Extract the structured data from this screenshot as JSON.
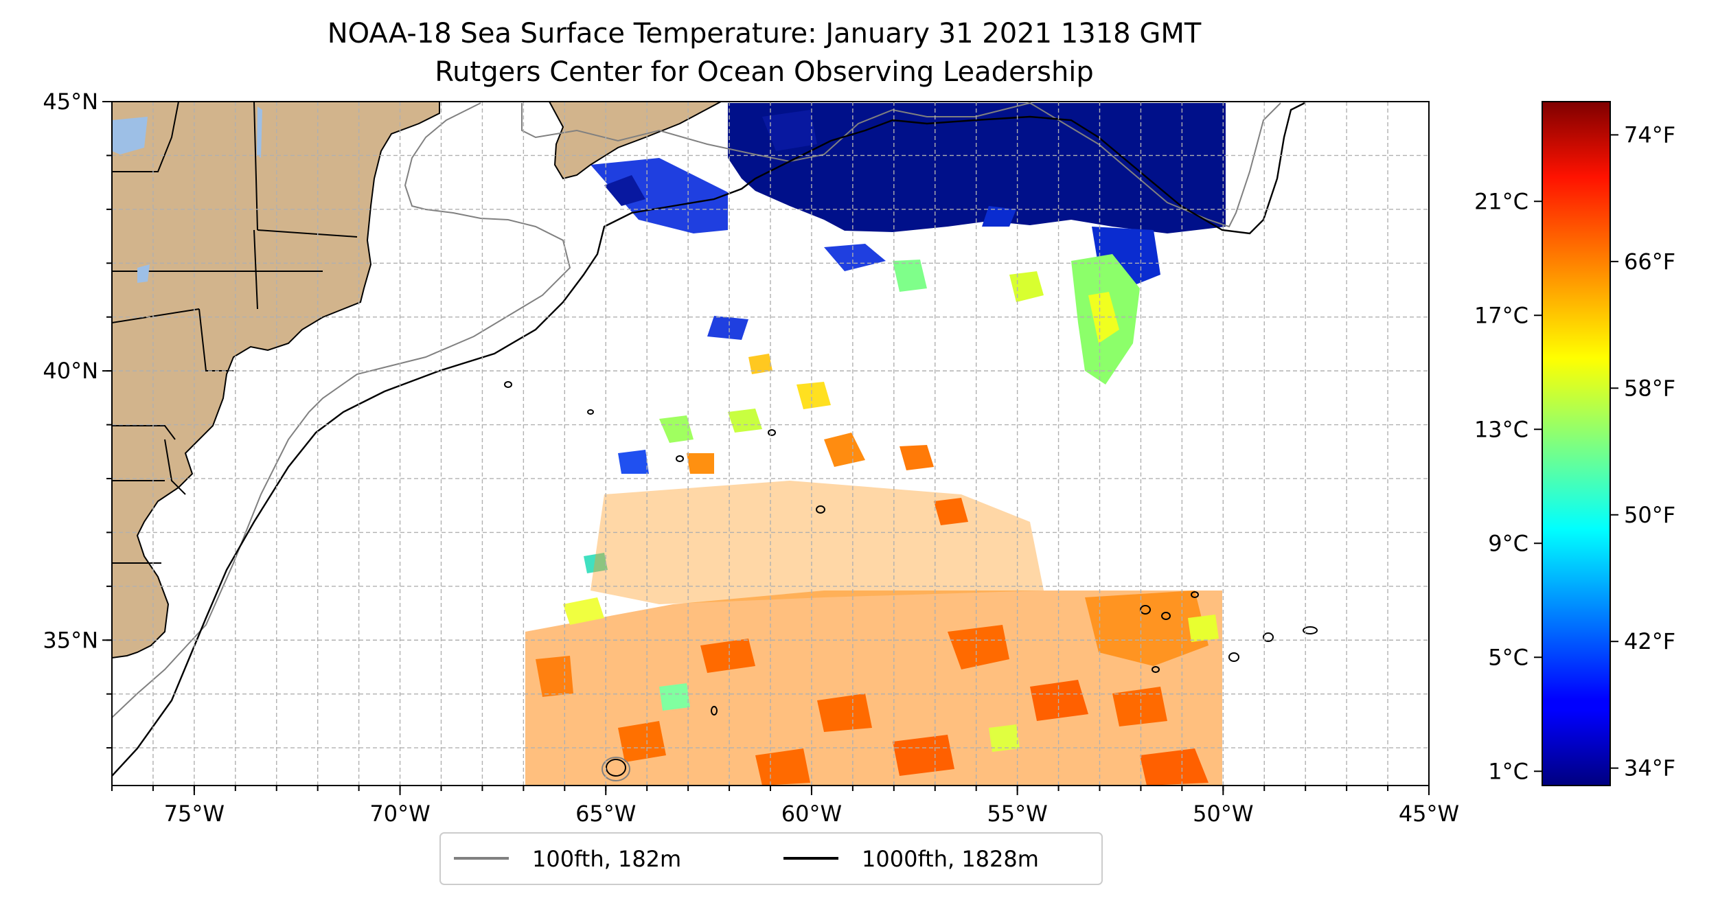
{
  "title": {
    "line1": "NOAA-18 Sea Surface Temperature: January 31 2021 1318 GMT",
    "line2": "Rutgers Center for Ocean Observing Leadership"
  },
  "map": {
    "lon_range": [
      -77,
      -45
    ],
    "lat_range": [
      32.3,
      45
    ],
    "lon_ticks": [
      {
        "lon": -75,
        "label": "75°W"
      },
      {
        "lon": -70,
        "label": "70°W"
      },
      {
        "lon": -65,
        "label": "65°W"
      },
      {
        "lon": -60,
        "label": "60°W"
      },
      {
        "lon": -55,
        "label": "55°W"
      },
      {
        "lon": -50,
        "label": "50°W"
      },
      {
        "lon": -45,
        "label": "45°W"
      }
    ],
    "lat_ticks": [
      {
        "lat": 45,
        "label": "45°N"
      },
      {
        "lat": 40,
        "label": "40°N"
      },
      {
        "lat": 35,
        "label": "35°N"
      }
    ],
    "grid": true,
    "land_color": "#D2B48C",
    "water_color": "#9DBFE6"
  },
  "legend": {
    "placement": "bottom-center",
    "items": [
      {
        "label": "100fth, 182m",
        "color": "#808080"
      },
      {
        "label": "1000fth, 1828m",
        "color": "#000000"
      }
    ]
  },
  "colorbar": {
    "colormap": "jet",
    "range_c": [
      0.5,
      24.5
    ],
    "left_ticks": [
      {
        "value_c": 1,
        "label": "1°C"
      },
      {
        "value_c": 5,
        "label": "5°C"
      },
      {
        "value_c": 9,
        "label": "9°C"
      },
      {
        "value_c": 13,
        "label": "13°C"
      },
      {
        "value_c": 17,
        "label": "17°C"
      },
      {
        "value_c": 21,
        "label": "21°C"
      }
    ],
    "right_ticks": [
      {
        "value_f": 34,
        "label": "34°F"
      },
      {
        "value_f": 42,
        "label": "42°F"
      },
      {
        "value_f": 50,
        "label": "50°F"
      },
      {
        "value_f": 58,
        "label": "58°F"
      },
      {
        "value_f": 66,
        "label": "66°F"
      },
      {
        "value_f": 74,
        "label": "74°F"
      }
    ]
  }
}
